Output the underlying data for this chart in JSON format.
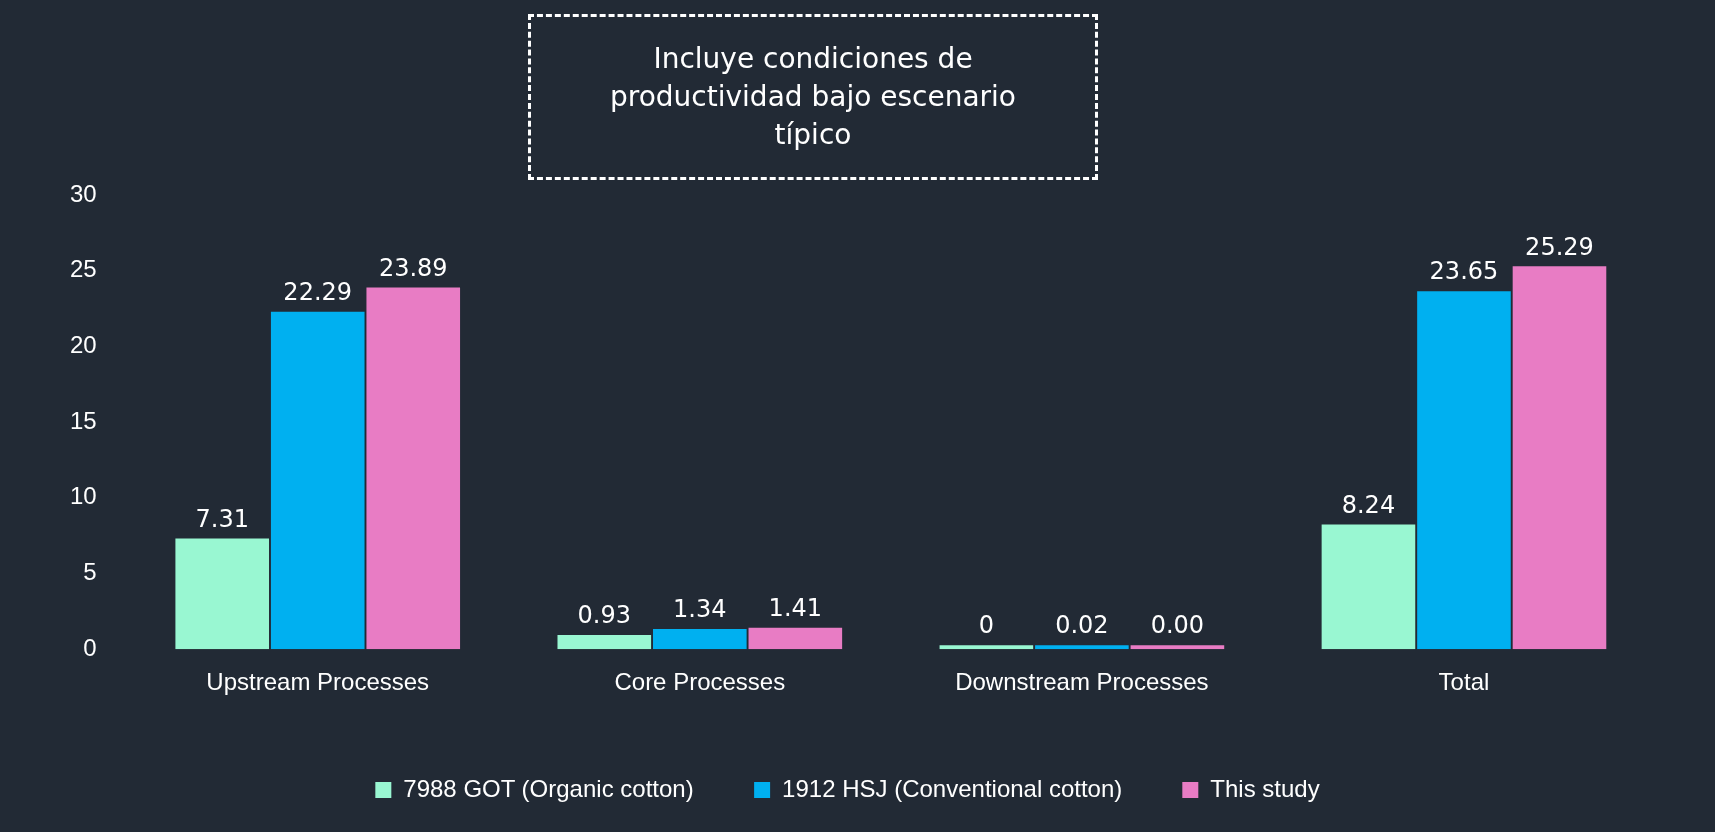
{
  "chart_data": {
    "type": "bar",
    "categories": [
      "Upstream Processes",
      "Core Processes",
      "Downstream Processes",
      "Total"
    ],
    "series": [
      {
        "name": "7988 GOT (Organic cotton)",
        "color": "#99f7d2",
        "values": [
          7.31,
          0.93,
          0,
          8.24
        ],
        "value_labels": [
          "7.31",
          "0.93",
          "0",
          "8.24"
        ]
      },
      {
        "name": "1912 HSJ (Conventional cotton)",
        "color": "#00b0f0",
        "values": [
          22.29,
          1.34,
          0.02,
          23.65
        ],
        "value_labels": [
          "22.29",
          "1.34",
          "0.02",
          "23.65"
        ]
      },
      {
        "name": "This study",
        "color": "#e87cc4",
        "values": [
          23.89,
          1.41,
          0,
          25.29
        ],
        "value_labels": [
          "23.89",
          "1.41",
          "0.00",
          "25.29"
        ]
      }
    ],
    "ylim": [
      0,
      30
    ],
    "yticks": [
      0,
      5,
      10,
      15,
      20,
      25,
      30
    ],
    "grid": false,
    "legend": "bottom",
    "annotations": [
      "Incluye condiciones de productividad bajo escenario típico"
    ]
  }
}
